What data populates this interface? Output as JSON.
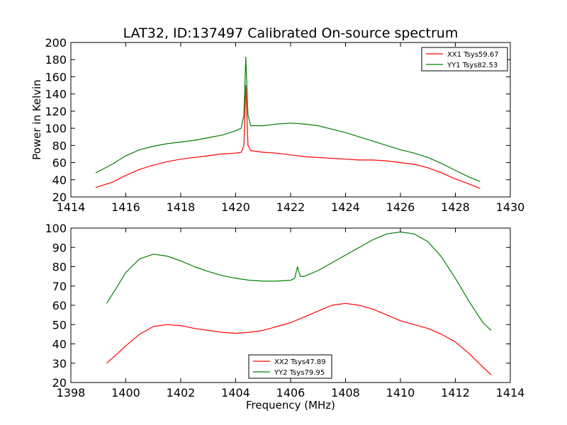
{
  "figure": {
    "title": "LAT32, ID:137497 Calibrated On-source spectrum"
  },
  "chart_data": [
    {
      "type": "line",
      "xlabel": "",
      "ylabel": "Power in Kelvin",
      "xlim": [
        1414,
        1430
      ],
      "ylim": [
        20,
        200
      ],
      "xticks": [
        1414,
        1416,
        1418,
        1420,
        1422,
        1424,
        1426,
        1428,
        1430
      ],
      "yticks": [
        20,
        40,
        60,
        80,
        100,
        120,
        140,
        160,
        180,
        200
      ],
      "grid": false,
      "legend_position": "top-right",
      "series": [
        {
          "name": "XX1 Tsys59.67",
          "color": "#ff0000",
          "points": [
            [
              1414.9,
              31
            ],
            [
              1415.5,
              37
            ],
            [
              1416.0,
              45
            ],
            [
              1416.5,
              52
            ],
            [
              1417.0,
              57
            ],
            [
              1417.5,
              61
            ],
            [
              1418.0,
              64
            ],
            [
              1418.5,
              66
            ],
            [
              1419.0,
              68
            ],
            [
              1419.5,
              70
            ],
            [
              1420.0,
              71
            ],
            [
              1420.2,
              72
            ],
            [
              1420.3,
              80
            ],
            [
              1420.37,
              150
            ],
            [
              1420.45,
              80
            ],
            [
              1420.55,
              74
            ],
            [
              1421.0,
              72
            ],
            [
              1421.5,
              71
            ],
            [
              1422.0,
              69
            ],
            [
              1422.5,
              67
            ],
            [
              1423.0,
              66
            ],
            [
              1423.5,
              65
            ],
            [
              1424.0,
              64
            ],
            [
              1424.5,
              63
            ],
            [
              1425.0,
              63
            ],
            [
              1425.5,
              62
            ],
            [
              1426.0,
              60
            ],
            [
              1426.5,
              58
            ],
            [
              1427.0,
              54
            ],
            [
              1427.5,
              48
            ],
            [
              1428.0,
              41
            ],
            [
              1428.5,
              35
            ],
            [
              1428.9,
              30
            ]
          ]
        },
        {
          "name": "YY1 Tsys82.53",
          "color": "#008000",
          "points": [
            [
              1414.9,
              48
            ],
            [
              1415.5,
              58
            ],
            [
              1416.0,
              68
            ],
            [
              1416.5,
              75
            ],
            [
              1417.0,
              79
            ],
            [
              1417.5,
              82
            ],
            [
              1418.0,
              84
            ],
            [
              1418.5,
              86
            ],
            [
              1419.0,
              89
            ],
            [
              1419.5,
              92
            ],
            [
              1420.0,
              97
            ],
            [
              1420.2,
              100
            ],
            [
              1420.3,
              115
            ],
            [
              1420.37,
              183
            ],
            [
              1420.45,
              115
            ],
            [
              1420.55,
              103
            ],
            [
              1421.0,
              103
            ],
            [
              1421.5,
              105
            ],
            [
              1422.0,
              106
            ],
            [
              1422.5,
              105
            ],
            [
              1423.0,
              103
            ],
            [
              1423.5,
              99
            ],
            [
              1424.0,
              95
            ],
            [
              1424.5,
              90
            ],
            [
              1425.0,
              85
            ],
            [
              1425.5,
              80
            ],
            [
              1426.0,
              75
            ],
            [
              1426.5,
              71
            ],
            [
              1427.0,
              66
            ],
            [
              1427.5,
              59
            ],
            [
              1428.0,
              51
            ],
            [
              1428.5,
              43
            ],
            [
              1428.9,
              38
            ]
          ]
        }
      ]
    },
    {
      "type": "line",
      "xlabel": "Frequency (MHz)",
      "ylabel": "",
      "xlim": [
        1398,
        1414
      ],
      "ylim": [
        20,
        100
      ],
      "xticks": [
        1398,
        1400,
        1402,
        1404,
        1406,
        1408,
        1410,
        1412,
        1414
      ],
      "yticks": [
        20,
        30,
        40,
        50,
        60,
        70,
        80,
        90,
        100
      ],
      "grid": false,
      "legend_position": "bottom-center",
      "series": [
        {
          "name": "XX2 Tsys47.89",
          "color": "#ff0000",
          "points": [
            [
              1399.3,
              30
            ],
            [
              1399.7,
              35
            ],
            [
              1400.0,
              39
            ],
            [
              1400.5,
              45
            ],
            [
              1401.0,
              49
            ],
            [
              1401.5,
              50
            ],
            [
              1402.0,
              49.5
            ],
            [
              1402.5,
              48
            ],
            [
              1403.0,
              47
            ],
            [
              1403.5,
              46
            ],
            [
              1404.0,
              45.5
            ],
            [
              1404.5,
              46
            ],
            [
              1405.0,
              47
            ],
            [
              1405.5,
              49
            ],
            [
              1406.0,
              51
            ],
            [
              1406.5,
              54
            ],
            [
              1407.0,
              57
            ],
            [
              1407.5,
              60
            ],
            [
              1408.0,
              61
            ],
            [
              1408.5,
              60
            ],
            [
              1409.0,
              58
            ],
            [
              1409.5,
              55
            ],
            [
              1410.0,
              52
            ],
            [
              1410.5,
              50
            ],
            [
              1411.0,
              48
            ],
            [
              1411.5,
              45
            ],
            [
              1412.0,
              41
            ],
            [
              1412.5,
              35
            ],
            [
              1413.0,
              28
            ],
            [
              1413.3,
              24
            ]
          ]
        },
        {
          "name": "YY2 Tsys79.95",
          "color": "#008000",
          "points": [
            [
              1399.3,
              61
            ],
            [
              1399.7,
              70
            ],
            [
              1400.0,
              77
            ],
            [
              1400.5,
              84
            ],
            [
              1401.0,
              86.5
            ],
            [
              1401.5,
              85.5
            ],
            [
              1402.0,
              83
            ],
            [
              1402.5,
              80
            ],
            [
              1403.0,
              77.5
            ],
            [
              1403.5,
              75.5
            ],
            [
              1404.0,
              74
            ],
            [
              1404.5,
              73
            ],
            [
              1405.0,
              72.5
            ],
            [
              1405.5,
              72.5
            ],
            [
              1406.0,
              73
            ],
            [
              1406.15,
              74
            ],
            [
              1406.25,
              80
            ],
            [
              1406.35,
              75
            ],
            [
              1406.5,
              75
            ],
            [
              1407.0,
              78
            ],
            [
              1407.5,
              82
            ],
            [
              1408.0,
              86
            ],
            [
              1408.5,
              90
            ],
            [
              1409.0,
              94
            ],
            [
              1409.5,
              97
            ],
            [
              1410.0,
              98
            ],
            [
              1410.5,
              97
            ],
            [
              1411.0,
              93
            ],
            [
              1411.5,
              85
            ],
            [
              1412.0,
              74
            ],
            [
              1412.5,
              62
            ],
            [
              1413.0,
              51
            ],
            [
              1413.3,
              47
            ]
          ]
        }
      ]
    }
  ]
}
